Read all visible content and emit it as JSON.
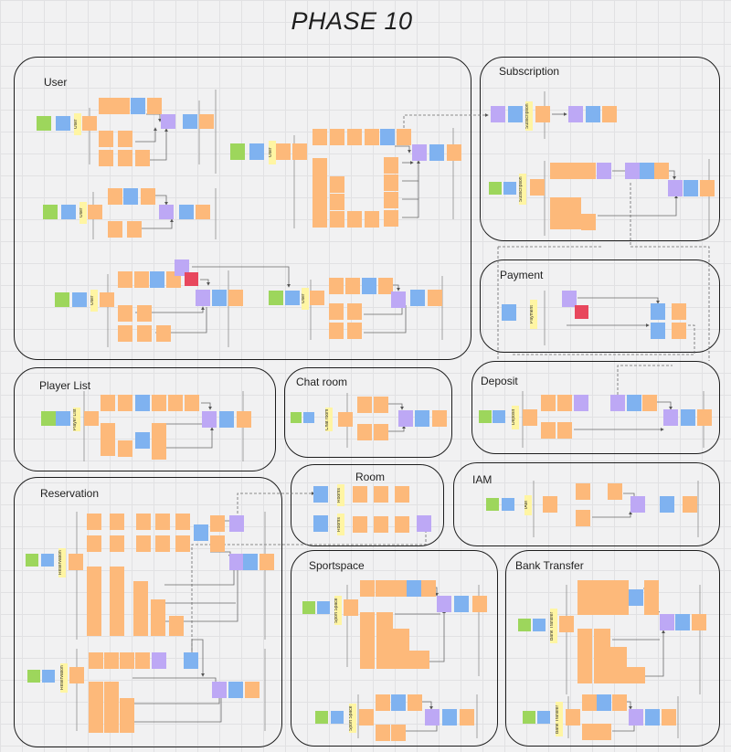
{
  "board": {
    "title": "PHASE 10"
  },
  "frames": {
    "user": "User",
    "subscription": "Subscription",
    "payment": "Payment",
    "player_list": "Player List",
    "chat_room": "Chat room",
    "deposit": "Deposit",
    "room": "Room",
    "iam": "IAM",
    "reservation": "Reservation",
    "sportspace": "Sportspace",
    "bank_transfer": "Bank Transfer"
  },
  "aggregates": {
    "user": "User",
    "subscription": "Subscription",
    "payment": "Payment",
    "player_list": "Player List",
    "chat_room": "Chat room",
    "deposit": "Deposit",
    "rooms": "Rooms",
    "iam": "IAM",
    "reservation": "Reservation",
    "sport_space": "Sport Space",
    "bank_transfer": "Bank Transfer"
  },
  "colors": {
    "event": "#fdb97a",
    "command": "#7fb2f0",
    "policy": "#bda8f5",
    "actor": "#9dd65c",
    "aggregate": "#fff39a",
    "hotspot": "#e8475d"
  }
}
